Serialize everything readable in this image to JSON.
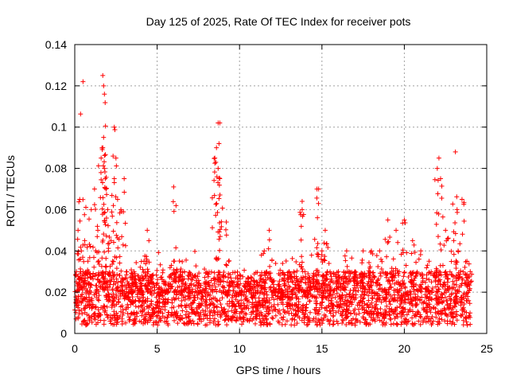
{
  "chart_data": {
    "type": "scatter",
    "title": "Day 125 of 2025, Rate Of TEC Index for receiver pots",
    "xlabel": "GPS time / hours",
    "ylabel": "ROTI / TECUs",
    "xlim": [
      0,
      25
    ],
    "ylim": [
      0,
      0.14
    ],
    "xticks": [
      "0",
      "5",
      "10",
      "15",
      "20",
      "25"
    ],
    "yticks": [
      "0",
      "0.02",
      "0.04",
      "0.06",
      "0.08",
      "0.1",
      "0.12",
      "0.14"
    ],
    "grid": true,
    "marker": "plus",
    "color": "#ff0000",
    "series": [
      {
        "values_x": [
          0.1,
          0.2,
          0.3,
          0.4,
          0.5,
          0.6,
          0.8,
          1.0,
          1.2,
          1.4,
          1.6,
          1.7,
          1.75,
          1.8,
          1.85,
          1.9,
          2.0,
          2.2,
          2.4,
          2.5,
          2.6,
          2.8,
          3.0,
          3.2,
          3.4,
          3.6,
          4.0,
          4.2,
          4.4,
          4.5,
          4.6,
          5.0,
          5.5,
          6.0,
          6.2,
          6.5,
          7.0,
          7.5,
          8.0,
          8.5,
          8.6,
          8.7,
          8.8,
          9.0,
          9.5,
          10.0,
          10.5,
          11.0,
          11.5,
          11.8,
          12.0,
          12.5,
          13.0,
          13.5,
          13.8,
          14.0,
          14.5,
          14.8,
          15.0,
          15.2,
          15.5,
          16.0,
          16.5,
          17.0,
          17.5,
          18.0,
          18.5,
          19.0,
          19.5,
          20.0,
          20.5,
          21.0,
          21.5,
          22.0,
          22.2,
          22.5,
          23.0,
          23.2,
          23.5,
          23.8,
          24.0,
          0.5,
          1.7,
          1.75,
          1.8,
          2.4,
          8.7,
          8.8,
          22.1,
          23.1,
          6.0,
          14.7,
          13.8,
          9.2
        ],
        "values_y": [
          0.03,
          0.05,
          0.065,
          0.04,
          0.03,
          0.045,
          0.035,
          0.06,
          0.07,
          0.05,
          0.085,
          0.09,
          0.095,
          0.08,
          0.075,
          0.07,
          0.06,
          0.045,
          0.075,
          0.085,
          0.065,
          0.06,
          0.075,
          0.025,
          0.02,
          0.03,
          0.02,
          0.035,
          0.05,
          0.045,
          0.025,
          0.015,
          0.02,
          0.035,
          0.02,
          0.025,
          0.02,
          0.02,
          0.025,
          0.085,
          0.09,
          0.08,
          0.075,
          0.02,
          0.025,
          0.02,
          0.025,
          0.02,
          0.04,
          0.05,
          0.025,
          0.02,
          0.03,
          0.025,
          0.06,
          0.02,
          0.025,
          0.07,
          0.04,
          0.05,
          0.025,
          0.03,
          0.04,
          0.03,
          0.04,
          0.04,
          0.04,
          0.055,
          0.05,
          0.055,
          0.045,
          0.04,
          0.035,
          0.08,
          0.075,
          0.05,
          0.045,
          0.06,
          0.065,
          0.035,
          0.03,
          0.122,
          0.125,
          0.12,
          0.116,
          0.1,
          0.102,
          0.102,
          0.085,
          0.088,
          0.071,
          0.07,
          0.064,
          0.054
        ]
      }
    ]
  }
}
